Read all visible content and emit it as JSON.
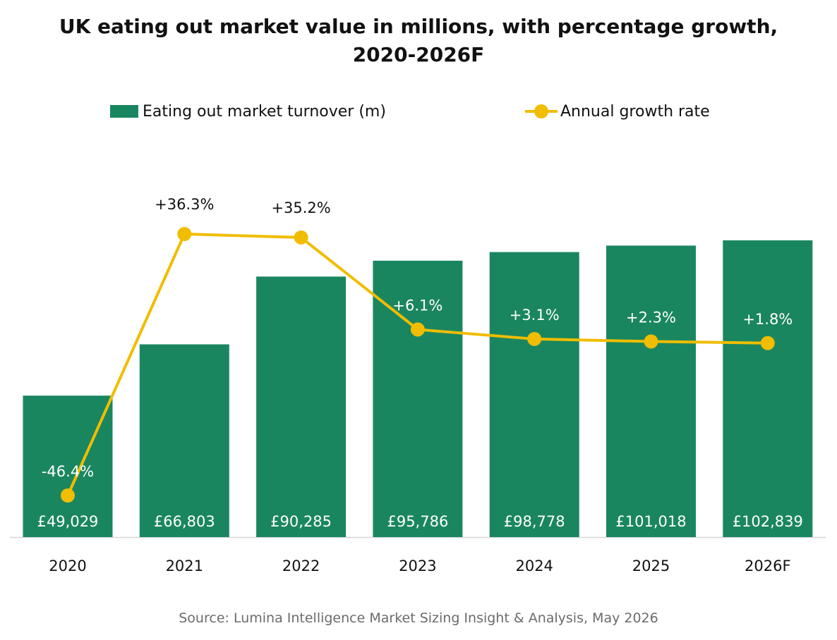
{
  "chart_data": {
    "type": "bar",
    "title_lines": [
      "UK eating out market value in millions, with percentage growth,",
      "2020-2026F"
    ],
    "categories": [
      "2020",
      "2021",
      "2022",
      "2023",
      "2024",
      "2025",
      "2026F"
    ],
    "series": [
      {
        "name": "Eating out market turnover (m)",
        "type": "bar",
        "values": [
          49029,
          66803,
          90285,
          95786,
          98778,
          101018,
          102839
        ],
        "labels": [
          "£49,029",
          "£66,803",
          "£90,285",
          "£95,786",
          "£98,778",
          "£101,018",
          "£102,839"
        ],
        "color": "#1a8660"
      },
      {
        "name": "Annual growth rate",
        "type": "line",
        "values": [
          -46.4,
          36.3,
          35.2,
          6.1,
          3.1,
          2.3,
          1.8
        ],
        "labels": [
          "-46.4%",
          "+36.3%",
          "+35.2%",
          "+6.1%",
          "+3.1%",
          "+2.3%",
          "+1.8%"
        ],
        "color": "#f0bd00"
      }
    ],
    "legend_position": "top",
    "grid": false
  },
  "source": "Source: Lumina Intelligence Market Sizing Insight & Analysis,  May 2026"
}
